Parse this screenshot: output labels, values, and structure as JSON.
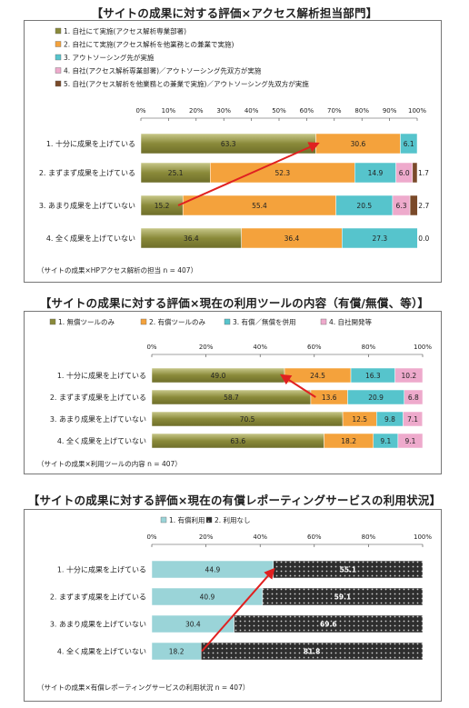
{
  "charts": [
    {
      "title": "【サイトの成果に対する評価×アクセス解析担当部門】",
      "note": "（サイトの成果×HPアクセス解析の担当 n = 407）"
    },
    {
      "title": "【サイトの成果に対する評価×現在の利用ツールの内容（有償/無償、等）】",
      "note": "（サイトの成果×利用ツールの内容 n = 407）"
    },
    {
      "title": "【サイトの成果に対する評価×現在の有償レポーティングサービスの利用状況】",
      "note": "（サイトの成果×有償レポーティングサービスの利用状況 n = 407）"
    }
  ],
  "colors": [
    "#8a8a3a",
    "#f4a23c",
    "#56c4cc",
    "#eeaacc",
    "#7a4a2a",
    "#2e2e2e",
    "#9ad4d8"
  ],
  "chart_data": [
    {
      "type": "bar",
      "stacked": "horizontal-100%",
      "title": "【サイトの成果に対する評価×アクセス解析担当部門】",
      "categories": [
        "1. 十分に成果を上げている",
        "2. まずまず成果を上げている",
        "3. あまり成果を上げていない",
        "4. 全く成果を上げていない"
      ],
      "xlim": [
        0,
        100
      ],
      "xticks": [
        "0%",
        "10%",
        "20%",
        "30%",
        "40%",
        "50%",
        "60%",
        "70%",
        "80%",
        "90%",
        "100%"
      ],
      "legend_position": "top",
      "series": [
        {
          "name": "1. 自社にて実施(アクセス解析専業部署)",
          "color": "#8a8a3a",
          "values": [
            63.3,
            25.1,
            15.2,
            36.4
          ]
        },
        {
          "name": "2. 自社にて実施(アクセス解析を他業務との兼業で実施)",
          "color": "#f4a23c",
          "values": [
            30.6,
            52.3,
            55.4,
            36.4
          ]
        },
        {
          "name": "3. アウトソーシング先が実施",
          "color": "#56c4cc",
          "values": [
            6.1,
            14.9,
            20.5,
            27.3
          ]
        },
        {
          "name": "4. 自社(アクセス解析専業部署)／アウトソーシング先双方が実施",
          "color": "#eeaacc",
          "values": [
            null,
            6.0,
            6.3,
            null
          ]
        },
        {
          "name": "5. 自社(アクセス解析を他業務との兼業で実施)／アウトソーシング先双方が実施",
          "color": "#7a4a2a",
          "values": [
            null,
            1.7,
            2.7,
            0.0
          ]
        }
      ],
      "arrow": {
        "from": [
          13.5,
          "3. あまり成果を上げていない"
        ],
        "to": [
          64.0,
          "1. 十分に成果を上げている"
        ]
      }
    },
    {
      "type": "bar",
      "stacked": "horizontal-100%",
      "title": "【サイトの成果に対する評価×現在の利用ツールの内容（有償/無償、等）】",
      "categories": [
        "1. 十分に成果を上げている",
        "2. まずまず成果を上げている",
        "3. あまり成果を上げていない",
        "4. 全く成果を上げていない"
      ],
      "xlim": [
        0,
        100
      ],
      "xticks": [
        "0%",
        "20%",
        "40%",
        "60%",
        "80%",
        "100%"
      ],
      "legend_position": "top",
      "series": [
        {
          "name": "1. 無償ツールのみ",
          "color": "#8a8a3a",
          "values": [
            49.0,
            58.7,
            70.5,
            63.6
          ]
        },
        {
          "name": "2. 有償ツールのみ",
          "color": "#f4a23c",
          "values": [
            24.5,
            13.6,
            12.5,
            18.2
          ]
        },
        {
          "name": "3. 有償／無償を併用",
          "color": "#56c4cc",
          "values": [
            16.3,
            20.9,
            9.8,
            9.1
          ]
        },
        {
          "name": "4. 自社開発等",
          "color": "#eeaacc",
          "values": [
            10.2,
            6.8,
            7.1,
            9.1
          ]
        }
      ],
      "arrow": {
        "from": [
          60.5,
          "2. まずまず成果を上げている"
        ],
        "to": [
          48.0,
          "1. 十分に成果を上げている"
        ]
      }
    },
    {
      "type": "bar",
      "stacked": "horizontal-100%",
      "title": "【サイトの成果に対する評価×現在の有償レポーティングサービスの利用状況】",
      "categories": [
        "1. 十分に成果を上げている",
        "2. まずまず成果を上げている",
        "3. あまり成果を上げていない",
        "4. 全く成果を上げていない"
      ],
      "xlim": [
        0,
        100
      ],
      "xticks": [
        "0%",
        "20%",
        "40%",
        "60%",
        "80%",
        "100%"
      ],
      "legend_position": "top",
      "series": [
        {
          "name": "1. 有償利用",
          "color": "#9ad4d8",
          "values": [
            44.9,
            40.9,
            30.4,
            18.2
          ]
        },
        {
          "name": "2. 利用なし",
          "color": "#2e2e2e",
          "values": [
            55.1,
            59.1,
            69.6,
            81.8
          ]
        }
      ],
      "arrow": {
        "from": [
          18.5,
          "4. 全く成果を上げていない"
        ],
        "to": [
          45.0,
          "1. 十分に成果を上げている"
        ]
      }
    }
  ]
}
